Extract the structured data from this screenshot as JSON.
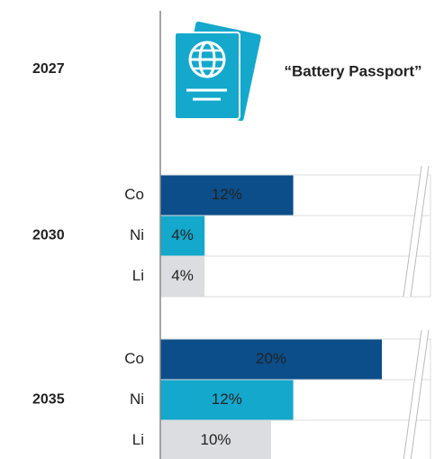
{
  "chart_data": {
    "type": "bar",
    "orientation": "horizontal",
    "milestones": [
      {
        "year": "2027",
        "label": "“Battery Passport”"
      }
    ],
    "groups": [
      {
        "name": "2030",
        "categories": [
          "Co",
          "Ni",
          "Li"
        ],
        "values": [
          12,
          4,
          4
        ],
        "value_labels": [
          "12%",
          "4%",
          "4%"
        ]
      },
      {
        "name": "2035",
        "categories": [
          "Co",
          "Ni",
          "Li"
        ],
        "values": [
          20,
          12,
          10
        ],
        "value_labels": [
          "20%",
          "12%",
          "10%"
        ]
      }
    ],
    "colors": [
      "#0b4e8a",
      "#14a8cc",
      "#dcdde0"
    ]
  }
}
